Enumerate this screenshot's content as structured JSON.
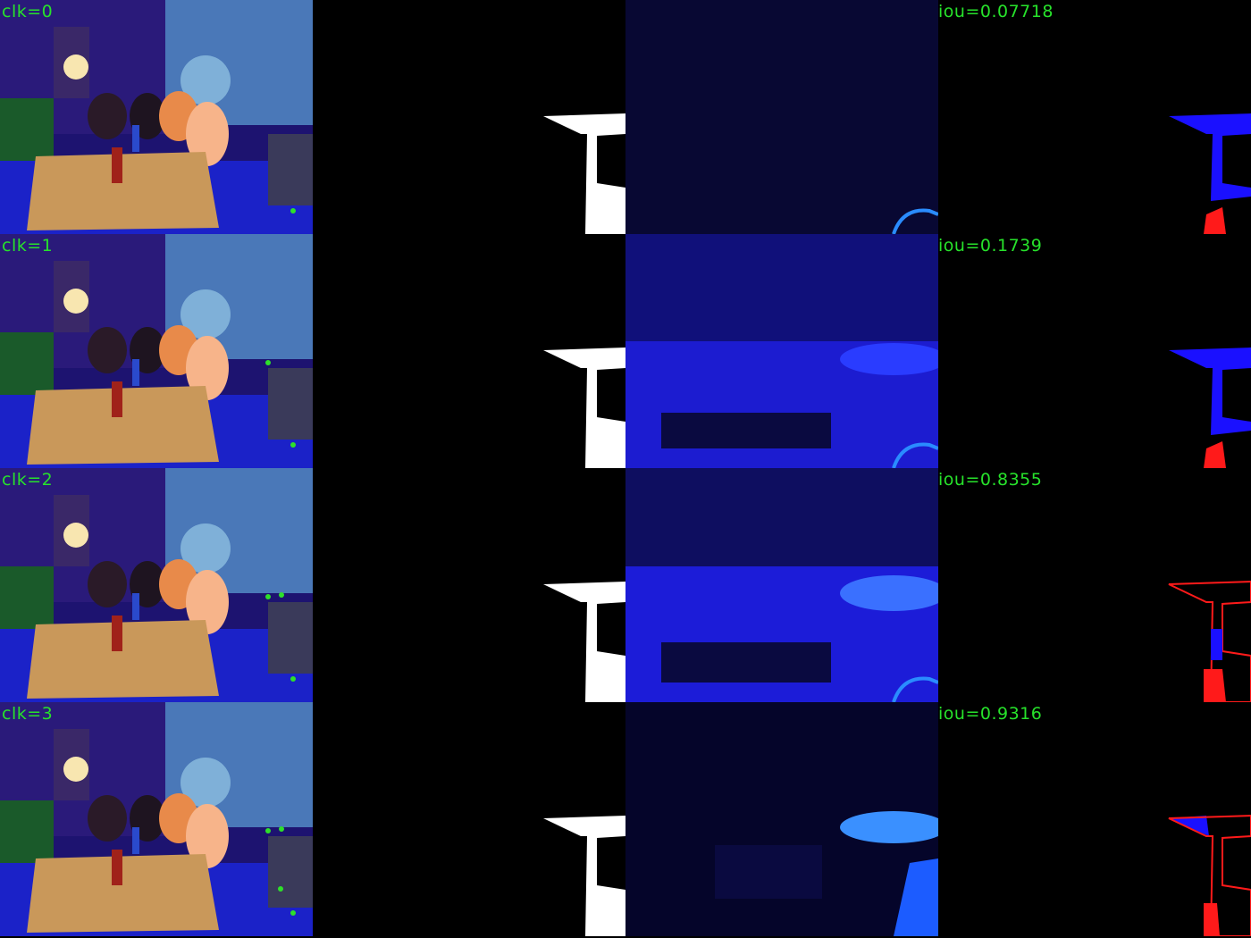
{
  "rows": [
    {
      "clk_label": "clk=0",
      "iou_label": "iou=0.07718"
    },
    {
      "clk_label": "clk=1",
      "iou_label": "iou=0.1739"
    },
    {
      "clk_label": "clk=2",
      "iou_label": "iou=0.8355"
    },
    {
      "clk_label": "clk=3",
      "iou_label": "iou=0.9316"
    }
  ],
  "colors": {
    "label_text": "#27e22b",
    "click_dot": "#2ee02a",
    "mask_white": "#ffffff",
    "overlay_blue": "#1a10ff",
    "overlay_red": "#ff1a1a",
    "heatmap_blue": "#1c1cff"
  }
}
